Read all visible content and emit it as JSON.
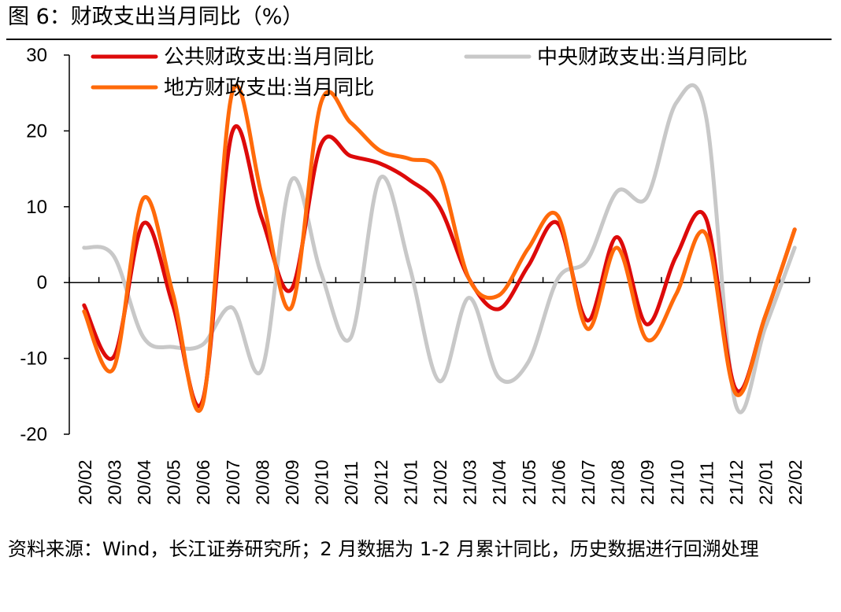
{
  "figure_title": "图 6：财政支出当月同比（%）",
  "source_note": "资料来源：Wind，长江证券研究所；2 月数据为 1-2 月累计同比，历史数据进行回溯处理",
  "colors": {
    "public": "#dd0a0a",
    "central": "#c8c8c8",
    "local": "#ff6a0a",
    "axis": "#000000"
  },
  "chart_data": {
    "type": "line",
    "title": "财政支出当月同比（%）",
    "xlabel": "",
    "ylabel": "",
    "ylim": [
      -20,
      30
    ],
    "yticks": [
      30,
      20,
      10,
      0,
      -10,
      -20
    ],
    "categories": [
      "20/02",
      "20/03",
      "20/04",
      "20/05",
      "20/06",
      "20/07",
      "20/08",
      "20/09",
      "20/10",
      "20/11",
      "20/12",
      "21/01",
      "21/02",
      "21/03",
      "21/04",
      "21/05",
      "21/06",
      "21/07",
      "21/08",
      "21/09",
      "21/10",
      "21/11",
      "21/12",
      "22/01",
      "22/02"
    ],
    "legend_position": "top",
    "series": [
      {
        "name": "公共财政支出:当月同比",
        "color_key": "public",
        "values": [
          -3,
          -9.8,
          7.8,
          -3,
          -15.6,
          19.8,
          8.5,
          -0.9,
          18.2,
          16.7,
          15.7,
          13.5,
          10,
          0.5,
          -3.5,
          2.2,
          7.8,
          -5,
          6,
          -5.5,
          3.5,
          8.5,
          -14,
          -4.5,
          7
        ],
        "smoothed": true
      },
      {
        "name": "中央财政支出:当月同比",
        "color_key": "central",
        "values": [
          4.6,
          3.5,
          -7.2,
          -8.5,
          -8.2,
          -3.3,
          -11.5,
          13.5,
          1.3,
          -7.3,
          13.8,
          2,
          -13,
          -2,
          -12.5,
          -10.5,
          0.5,
          3,
          12,
          11.2,
          23.7,
          22,
          -16,
          -6,
          4.6
        ],
        "smoothed": true
      },
      {
        "name": "地方财政支出:当月同比",
        "color_key": "local",
        "values": [
          -3.8,
          -11.3,
          11.1,
          -1.5,
          -16.1,
          25,
          11.5,
          -3.3,
          23.7,
          21.1,
          17.4,
          16.3,
          14.4,
          0.5,
          -1.7,
          4.5,
          8.8,
          -6.1,
          4.6,
          -7.5,
          -1.5,
          6.4,
          -14.6,
          -4.5,
          7
        ]
      }
    ]
  }
}
